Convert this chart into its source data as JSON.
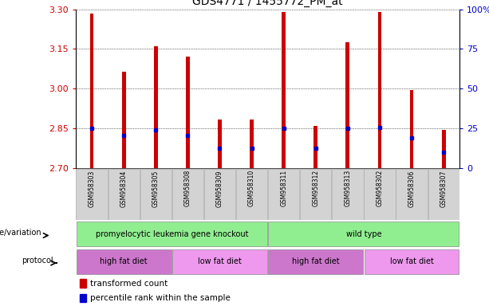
{
  "title": "GDS4771 / 1455772_PM_at",
  "samples": [
    "GSM958303",
    "GSM958304",
    "GSM958305",
    "GSM958308",
    "GSM958309",
    "GSM958310",
    "GSM958311",
    "GSM958312",
    "GSM958313",
    "GSM958302",
    "GSM958306",
    "GSM958307"
  ],
  "bar_top": [
    3.285,
    3.065,
    3.16,
    3.12,
    2.885,
    2.885,
    3.29,
    2.86,
    3.175,
    3.29,
    2.995,
    2.845
  ],
  "bar_bottom": [
    2.7,
    2.7,
    2.7,
    2.7,
    2.7,
    2.7,
    2.7,
    2.7,
    2.7,
    2.7,
    2.7,
    2.7
  ],
  "blue_pos": [
    2.85,
    2.825,
    2.845,
    2.825,
    2.775,
    2.775,
    2.85,
    2.775,
    2.85,
    2.855,
    2.815,
    2.76
  ],
  "ylim": [
    2.7,
    3.3
  ],
  "yticks": [
    2.7,
    2.85,
    3.0,
    3.15,
    3.3
  ],
  "right_yticks": [
    0,
    25,
    50,
    75,
    100
  ],
  "bar_color": "#cc0000",
  "blue_color": "#0000cc",
  "tick_label_bg": "#d3d3d3",
  "label_color_left": "#cc0000",
  "label_color_right": "#0000cc",
  "bar_width": 0.12,
  "genotype_groups": [
    {
      "label": "promyelocytic leukemia gene knockout",
      "start": 0,
      "end": 6,
      "color": "#90ee90"
    },
    {
      "label": "wild type",
      "start": 6,
      "end": 12,
      "color": "#90ee90"
    }
  ],
  "protocol_groups": [
    {
      "label": "high fat diet",
      "start": 0,
      "end": 3,
      "color": "#cc77cc"
    },
    {
      "label": "low fat diet",
      "start": 3,
      "end": 6,
      "color": "#ee99ee"
    },
    {
      "label": "high fat diet",
      "start": 6,
      "end": 9,
      "color": "#cc77cc"
    },
    {
      "label": "low fat diet",
      "start": 9,
      "end": 12,
      "color": "#ee99ee"
    }
  ]
}
